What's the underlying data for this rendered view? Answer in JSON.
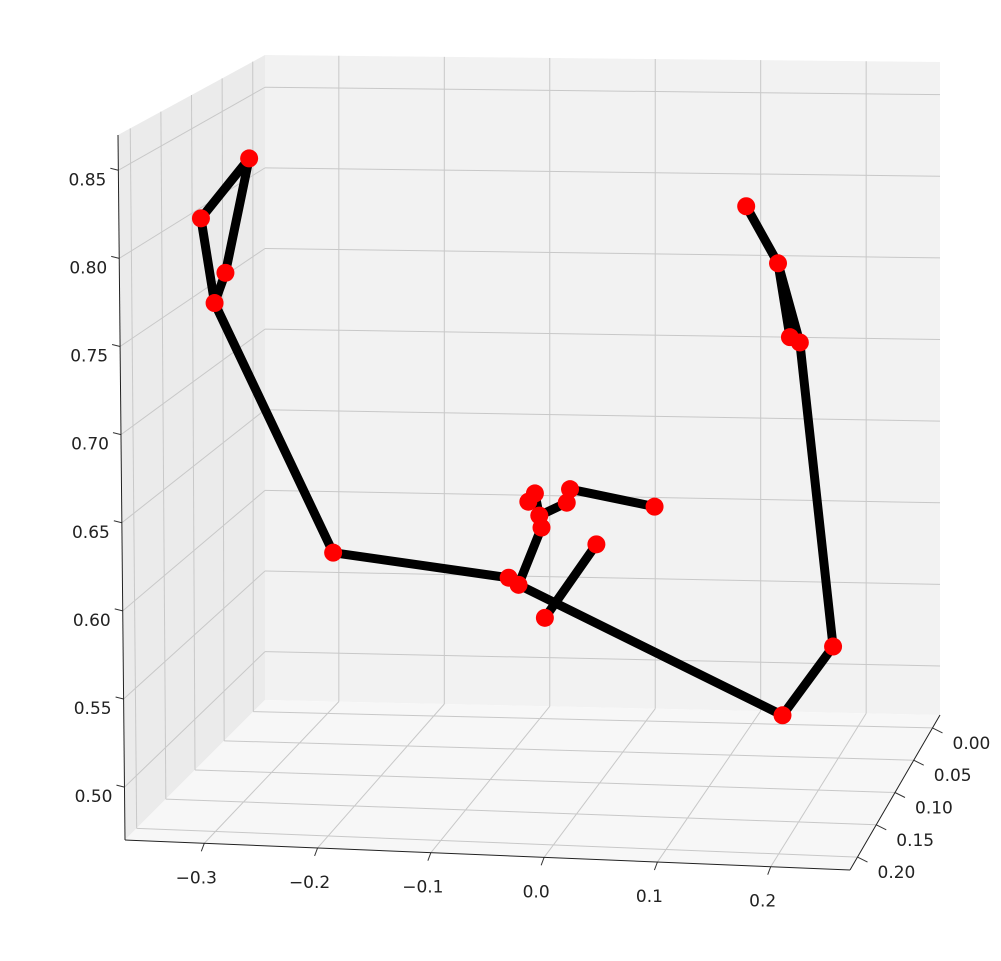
{
  "chart_data": {
    "type": "scatter3d",
    "x": [
      -0.318,
      -0.362,
      -0.34,
      -0.35,
      -0.243,
      -0.083,
      -0.074,
      -0.05,
      -0.003,
      -0.053,
      -0.055,
      -0.065,
      -0.059,
      -0.03,
      -0.027,
      0.05,
      0.167,
      0.213,
      0.182,
      0.173,
      0.162,
      0.133
    ],
    "y": [
      0.1,
      0.1,
      0.1,
      0.1,
      0.1,
      0.1,
      0.1,
      0.1,
      0.1,
      0.1,
      0.1,
      0.1,
      0.1,
      0.1,
      0.1,
      0.1,
      0.1,
      0.1,
      0.1,
      0.1,
      0.1,
      0.1
    ],
    "z": [
      0.833,
      0.797,
      0.765,
      0.747,
      0.601,
      0.589,
      0.585,
      0.566,
      0.61,
      0.619,
      0.626,
      0.634,
      0.639,
      0.634,
      0.642,
      0.633,
      0.513,
      0.554,
      0.731,
      0.734,
      0.777,
      0.81
    ],
    "color": "#ff0000",
    "line_color": "#000000",
    "xlim": [
      -0.37,
      0.27
    ],
    "ylim": [
      -0.02,
      0.22
    ],
    "zlim": [
      0.47,
      0.87
    ],
    "xticks": [
      {
        "value": -0.3,
        "label": "−0.3"
      },
      {
        "value": -0.2,
        "label": "−0.2"
      },
      {
        "value": -0.1,
        "label": "−0.1"
      },
      {
        "value": 0,
        "label": "0.0"
      },
      {
        "value": 0.1,
        "label": "0.1"
      },
      {
        "value": 0.2,
        "label": "0.2"
      }
    ],
    "yticks": [
      {
        "value": 0,
        "label": "0.00"
      },
      {
        "value": 0.05,
        "label": "0.05"
      },
      {
        "value": 0.1,
        "label": "0.10"
      },
      {
        "value": 0.15,
        "label": "0.15"
      },
      {
        "value": 0.2,
        "label": "0.20"
      }
    ],
    "zticks": [
      {
        "value": 0.5,
        "label": "0.50"
      },
      {
        "value": 0.55,
        "label": "0.55"
      },
      {
        "value": 0.6,
        "label": "0.60"
      },
      {
        "value": 0.65,
        "label": "0.65"
      },
      {
        "value": 0.7,
        "label": "0.70"
      },
      {
        "value": 0.75,
        "label": "0.75"
      },
      {
        "value": 0.8,
        "label": "0.80"
      },
      {
        "value": 0.85,
        "label": "0.85"
      }
    ],
    "grid": true
  }
}
